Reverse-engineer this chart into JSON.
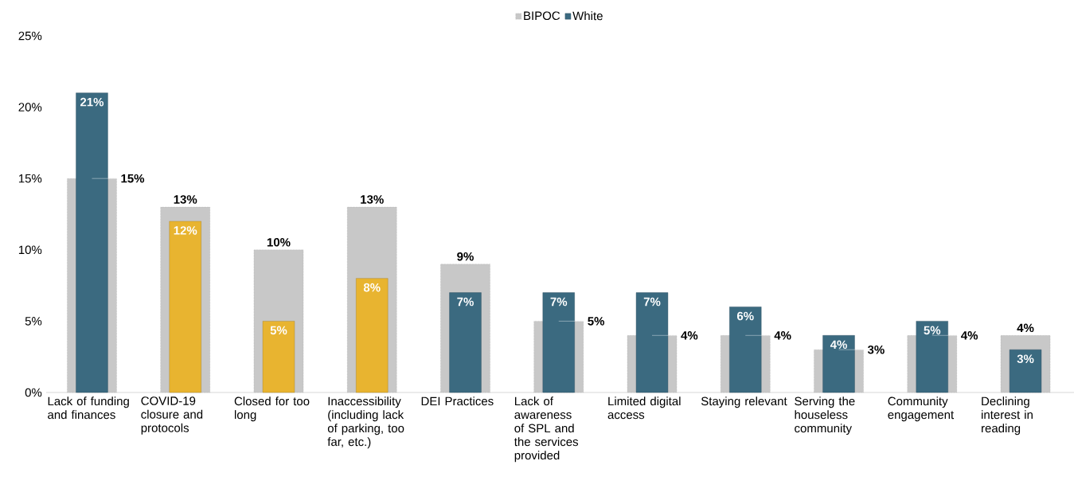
{
  "chart_data": {
    "type": "bar",
    "categories": [
      "Lack of funding and finances",
      "COVID-19 closure and protocols",
      "Closed for too long",
      "Inaccessibility (including lack of parking, too far, etc.)",
      "DEI Practices",
      "Lack of awareness of SPL and the services provided",
      "Limited digital access",
      "Staying relevant",
      "Serving the houseless community",
      "Community engagement",
      "Declining interest in reading"
    ],
    "series": [
      {
        "name": "BIPOC",
        "color": "#c8c8c8",
        "values": [
          15,
          13,
          10,
          13,
          9,
          5,
          4,
          4,
          3,
          4,
          4
        ],
        "value_labels": [
          "15%",
          "13%",
          "10%",
          "13%",
          "9%",
          "5%",
          "4%",
          "4%",
          "3%",
          "4%",
          "4%"
        ]
      },
      {
        "name": "White",
        "color": "#3b6a80",
        "colors": [
          "#3b6a80",
          "#e8b430",
          "#e8b430",
          "#e8b430",
          "#3b6a80",
          "#3b6a80",
          "#3b6a80",
          "#3b6a80",
          "#3b6a80",
          "#3b6a80",
          "#3b6a80"
        ],
        "values": [
          21,
          12,
          5,
          8,
          7,
          7,
          7,
          6,
          4,
          5,
          3
        ],
        "value_labels": [
          "21%",
          "12%",
          "5%",
          "8%",
          "7%",
          "7%",
          "7%",
          "6%",
          "4%",
          "5%",
          "3%"
        ]
      }
    ],
    "ylim": [
      0,
      25
    ],
    "yticks": [
      {
        "value": 0,
        "label": "0%"
      },
      {
        "value": 5,
        "label": "5%"
      },
      {
        "value": 10,
        "label": "10%"
      },
      {
        "value": 15,
        "label": "15%"
      },
      {
        "value": 20,
        "label": "20%"
      },
      {
        "value": 25,
        "label": "25%"
      }
    ],
    "legend": "top",
    "grid": false
  }
}
